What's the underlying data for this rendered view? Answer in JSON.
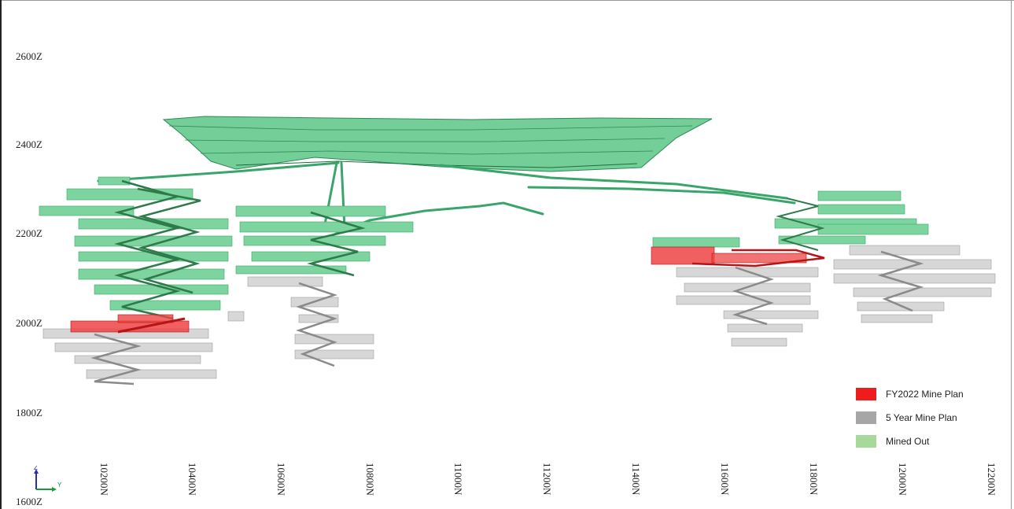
{
  "elevation_labels": [
    "2600Z",
    "2400Z",
    "2200Z",
    "2000Z",
    "1800Z",
    "1600Z"
  ],
  "northing_labels": [
    "10200N",
    "10400N",
    "10600N",
    "10800N",
    "11000N",
    "11200N",
    "11400N",
    "11600N",
    "11800N",
    "12000N",
    "12200N"
  ],
  "legend": [
    {
      "label": "FY2022 Mine Plan",
      "color": "#ee1c1c"
    },
    {
      "label": "5 Year Mine Plan",
      "color": "#a6a6a6"
    },
    {
      "label": "Mined Out",
      "color": "#a7d99a"
    }
  ],
  "colors": {
    "mined_out": "#5fc386",
    "mined_out_dark": "#2e8a55",
    "fy2022": "#e52222",
    "five_year": "#b8b8b8",
    "five_year_dark": "#8a8a8a"
  },
  "axis_triad": {
    "z": "Z",
    "y": "Y"
  }
}
